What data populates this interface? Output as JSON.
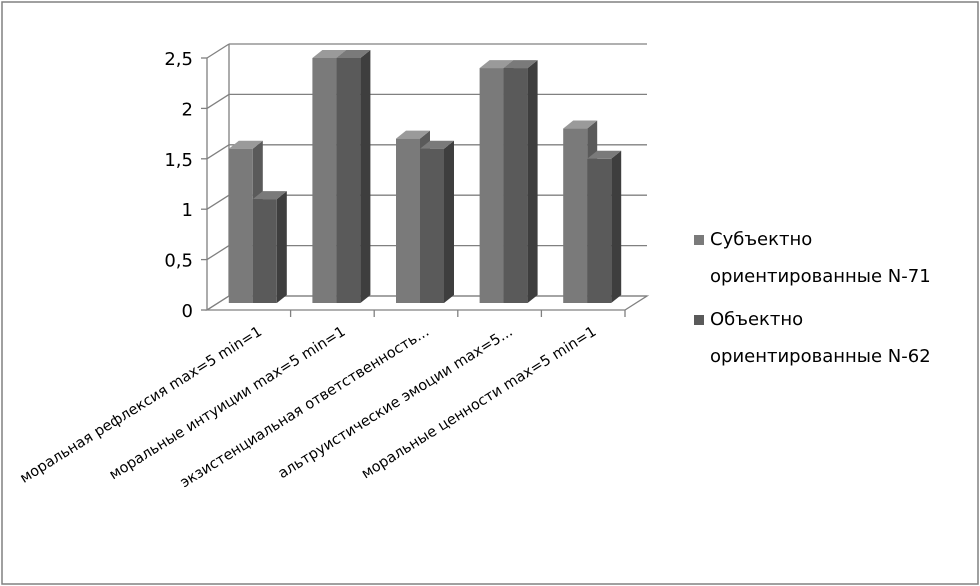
{
  "chart_data": {
    "type": "bar",
    "categories": [
      "моральная рефлексия max=5 min=1",
      "моральные интуиции max=5 min=1",
      "экзистенциальная ответственность...",
      "альтруистические эмоции max=5...",
      "моральные ценности max=5 min=1"
    ],
    "series": [
      {
        "name": "Субъектно ориентированные N-71",
        "values": [
          1.6,
          2.5,
          1.7,
          2.4,
          1.8
        ]
      },
      {
        "name": "Объектно ориентированные N-62",
        "values": [
          1.1,
          2.5,
          1.6,
          2.4,
          1.5
        ]
      }
    ],
    "ylim": [
      0,
      2.5
    ],
    "yticks": [
      "0",
      "0,5",
      "1",
      "1,5",
      "2",
      "2,5"
    ],
    "grid": true,
    "legend": "right",
    "title": "",
    "xlabel": "",
    "ylabel": "",
    "colors": {
      "series1_front": "#7a7a7a",
      "series1_side": "#5a5a5a",
      "series1_top": "#9a9a9a",
      "series2_front": "#5a5a5a",
      "series2_side": "#3e3e3e",
      "series2_top": "#7a7a7a",
      "grid": "#808080",
      "border": "#808080"
    },
    "legend_lines": [
      [
        "Субъектно",
        "ориентированные N-71"
      ],
      [
        "Объектно",
        "ориентированные N-62"
      ]
    ]
  }
}
